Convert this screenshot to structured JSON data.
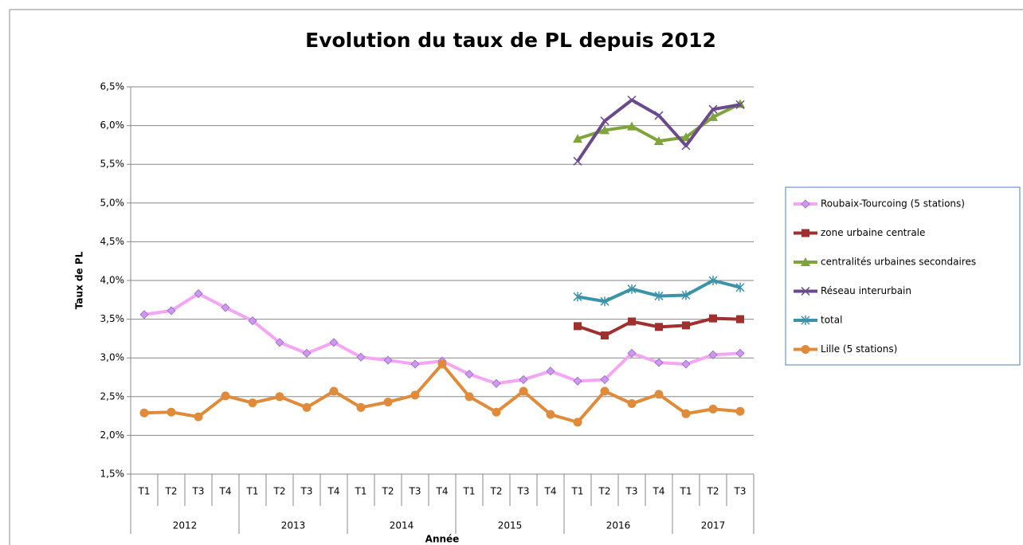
{
  "chart_data": {
    "type": "line",
    "title": "Evolution du taux de PL depuis 2012",
    "y_label": "Taux de PL",
    "x_label": "Année",
    "groups": [
      "2012",
      "2013",
      "2014",
      "2015",
      "2016",
      "2017"
    ],
    "categories": [
      "T1",
      "T2",
      "T3",
      "T4",
      "T1",
      "T2",
      "T3",
      "T4",
      "T1",
      "T2",
      "T3",
      "T4",
      "T1",
      "T2",
      "T3",
      "T4",
      "T1",
      "T2",
      "T3",
      "T4",
      "T1",
      "T2",
      "T3"
    ],
    "ylim": [
      1.5,
      6.5
    ],
    "yticks": [
      {
        "value": 1.5,
        "label": "1,5%"
      },
      {
        "value": 2.0,
        "label": "2,0%"
      },
      {
        "value": 2.5,
        "label": "2,5%"
      },
      {
        "value": 3.0,
        "label": "3,0%"
      },
      {
        "value": 3.5,
        "label": "3,5%"
      },
      {
        "value": 4.0,
        "label": "4,0%"
      },
      {
        "value": 4.5,
        "label": "4,5%"
      },
      {
        "value": 5.0,
        "label": "5,0%"
      },
      {
        "value": 5.5,
        "label": "5,5%"
      },
      {
        "value": 6.0,
        "label": "6,0%"
      },
      {
        "value": 6.5,
        "label": "6,5%"
      }
    ],
    "grid": true,
    "legend": "right",
    "series": [
      {
        "name": "Roubaix-Tourcoing (5 stations)",
        "color": "#f4a6f4",
        "marker_color": "#cc99ee",
        "marker": "diamond",
        "values": [
          3.56,
          3.61,
          3.83,
          3.65,
          3.48,
          3.2,
          3.06,
          3.2,
          3.01,
          2.97,
          2.92,
          2.96,
          2.79,
          2.67,
          2.72,
          2.83,
          2.7,
          2.72,
          3.06,
          2.94,
          2.92,
          3.04,
          3.06
        ]
      },
      {
        "name": "zone urbaine centrale",
        "color": "#a0302e",
        "marker_color": "#a0302e",
        "marker": "square",
        "values": [
          null,
          null,
          null,
          null,
          null,
          null,
          null,
          null,
          null,
          null,
          null,
          null,
          null,
          null,
          null,
          null,
          3.41,
          3.29,
          3.47,
          3.4,
          3.42,
          3.51,
          3.5
        ]
      },
      {
        "name": "centralités urbaines secondaires",
        "color": "#7fa43a",
        "marker_color": "#7fa43a",
        "marker": "triangle",
        "values": [
          null,
          null,
          null,
          null,
          null,
          null,
          null,
          null,
          null,
          null,
          null,
          null,
          null,
          null,
          null,
          null,
          5.83,
          5.94,
          5.99,
          5.8,
          5.85,
          6.11,
          6.28
        ]
      },
      {
        "name": "Réseau interurbain",
        "color": "#6a4a8c",
        "marker_color": "#6a4a8c",
        "marker": "x",
        "values": [
          null,
          null,
          null,
          null,
          null,
          null,
          null,
          null,
          null,
          null,
          null,
          null,
          null,
          null,
          null,
          null,
          5.54,
          6.06,
          6.33,
          6.13,
          5.74,
          6.21,
          6.27
        ]
      },
      {
        "name": "total",
        "color": "#3a93a8",
        "marker_color": "#3a93a8",
        "marker": "star",
        "values": [
          null,
          null,
          null,
          null,
          null,
          null,
          null,
          null,
          null,
          null,
          null,
          null,
          null,
          null,
          null,
          null,
          3.79,
          3.73,
          3.89,
          3.8,
          3.81,
          4.0,
          3.91
        ]
      },
      {
        "name": "Lille (5 stations)",
        "color": "#e08b3a",
        "marker_color": "#e08b3a",
        "marker": "circle",
        "values": [
          2.29,
          2.3,
          2.24,
          2.51,
          2.42,
          2.5,
          2.36,
          2.57,
          2.36,
          2.43,
          2.52,
          2.92,
          2.5,
          2.3,
          2.57,
          2.27,
          2.17,
          2.57,
          2.41,
          2.53,
          2.28,
          2.34,
          2.31
        ]
      }
    ]
  }
}
